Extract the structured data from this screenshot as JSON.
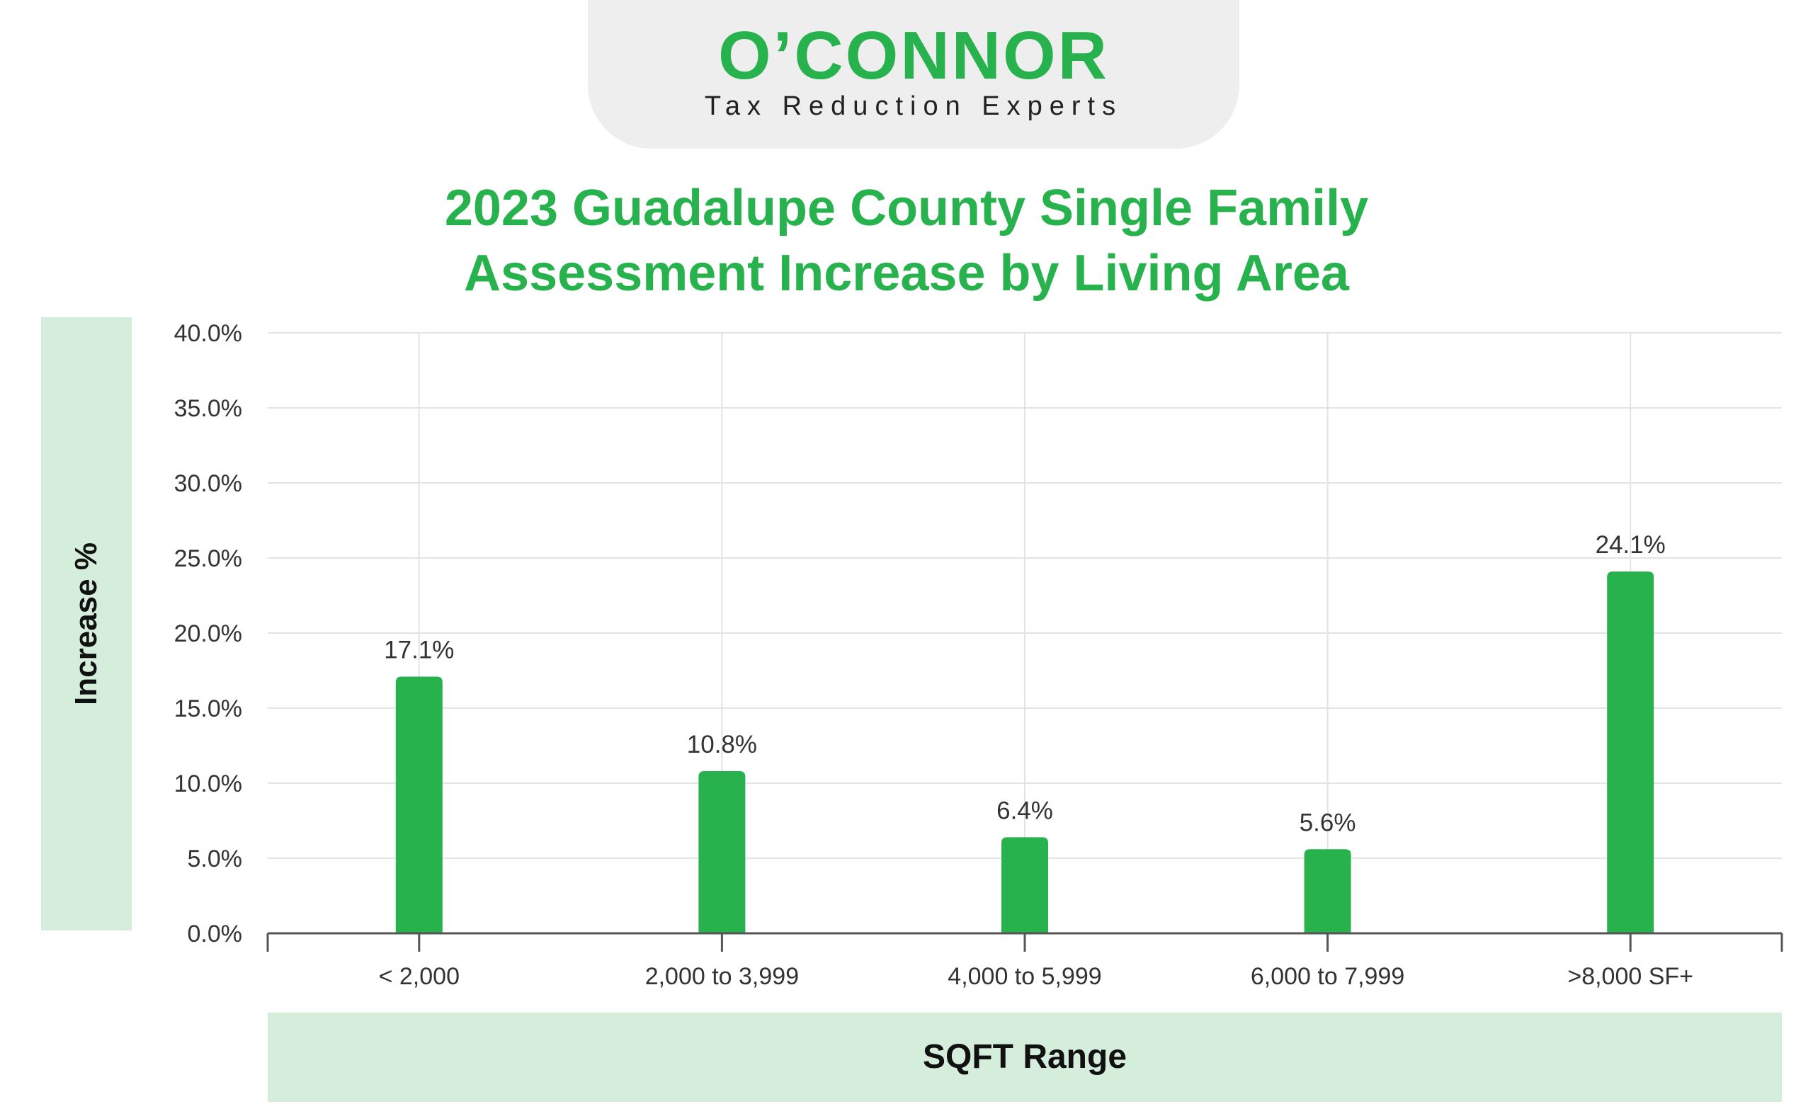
{
  "logo": {
    "wordmark": "O'CONNOR",
    "tagline": "Tax Reduction Experts"
  },
  "colors": {
    "accent": "#27b24e",
    "band": "#d4eedb",
    "logo_bg": "#eeeeee",
    "grid": "#e4e4e4",
    "axis": "#555555"
  },
  "chart_data": {
    "type": "bar",
    "title": "2023 Guadalupe County Single Family Assessment Increase by Living Area",
    "title_lines": [
      "2023 Guadalupe County Single Family",
      "Assessment Increase by Living Area"
    ],
    "xlabel": "SQFT Range",
    "ylabel": "Increase %",
    "categories": [
      "< 2,000",
      "2,000 to 3,999",
      "4,000 to 5,999",
      "6,000 to 7,999",
      ">8,000 SF+"
    ],
    "values": [
      17.1,
      10.8,
      6.4,
      5.6,
      24.1
    ],
    "value_labels": [
      "17.1%",
      "10.8%",
      "6.4%",
      "5.6%",
      "24.1%"
    ],
    "ylim": [
      0,
      40
    ],
    "yticks": [
      0,
      5,
      10,
      15,
      20,
      25,
      30,
      35,
      40
    ],
    "ytick_labels": [
      "0.0%",
      "5.0%",
      "10.0%",
      "15.0%",
      "20.0%",
      "25.0%",
      "30.0%",
      "35.0%",
      "40.0%"
    ],
    "grid": true,
    "legend": "none"
  }
}
